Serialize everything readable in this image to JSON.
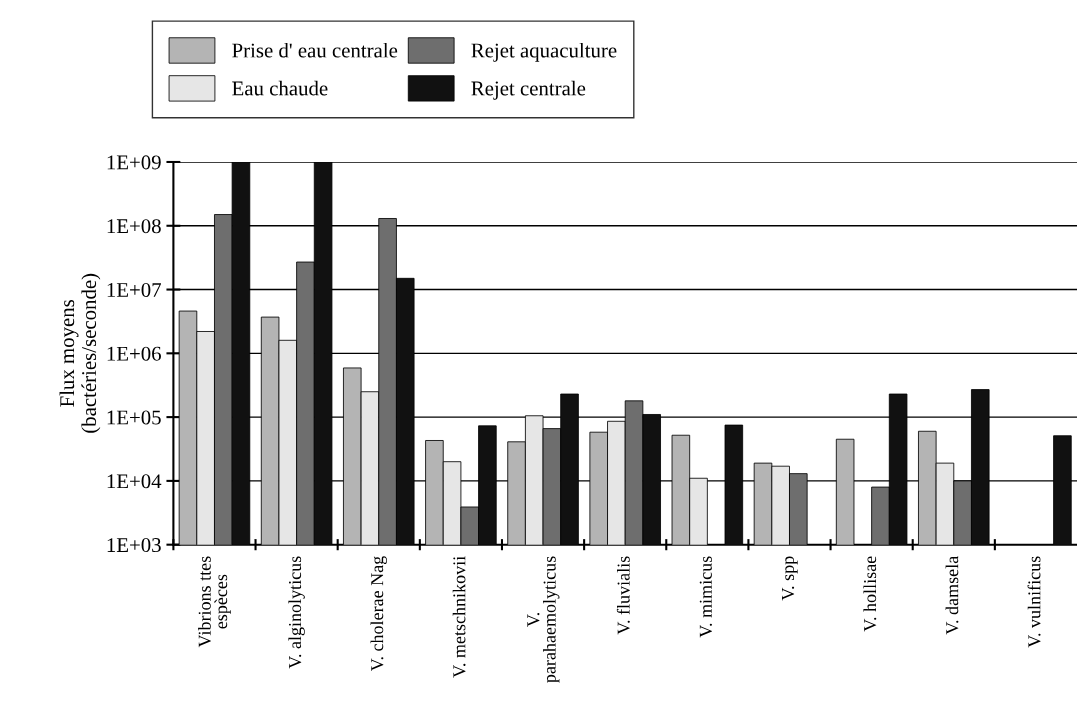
{
  "chart_data": {
    "type": "bar",
    "categories": [
      "Vibrions ttes\nespèces",
      "V. alginolyticus",
      "V. cholerae Nag",
      "V. metschnikovii",
      "V.\nparahaemolyticus",
      "V. fluvialis",
      "V. mimicus",
      "V. spp",
      "V. hollisae",
      "V. damsela",
      "V. vulnificus"
    ],
    "ylabel": "Flux moyens\n(bactéries/seconde)",
    "series": [
      {
        "name": "Prise d' eau centrale",
        "color": "#b4b4b4",
        "values": [
          4600000,
          3700000,
          590000,
          43000,
          41000,
          58000,
          52000,
          19000,
          45000,
          60000,
          null
        ]
      },
      {
        "name": "Eau chaude",
        "color": "#e6e6e6",
        "values": [
          2200000,
          1600000,
          250000,
          20000,
          105000,
          86000,
          11000,
          17000,
          null,
          19000,
          null
        ]
      },
      {
        "name": "Rejet aquaculture",
        "color": "#6e6e6e",
        "values": [
          150000000,
          27000000,
          130000000,
          3900,
          66000,
          180000,
          null,
          13000,
          8000,
          10000,
          null
        ]
      },
      {
        "name": "Rejet centrale",
        "color": "#111111",
        "values": [
          1000000000,
          1000000000,
          15000000,
          73000,
          230000,
          110000,
          75000,
          null,
          230000,
          270000,
          51000
        ]
      }
    ],
    "log": "y",
    "ylim": [
      1000,
      1000000000
    ],
    "yticks": [
      {
        "value": 1000,
        "label": "1E+03"
      },
      {
        "value": 10000,
        "label": "1E+04"
      },
      {
        "value": 100000,
        "label": "1E+05"
      },
      {
        "value": 1000000,
        "label": "1E+06"
      },
      {
        "value": 10000000,
        "label": "1E+07"
      },
      {
        "value": 100000000,
        "label": "1E+08"
      },
      {
        "value": 1000000000,
        "label": "1E+09"
      }
    ],
    "grid": "y",
    "legend": "top"
  }
}
